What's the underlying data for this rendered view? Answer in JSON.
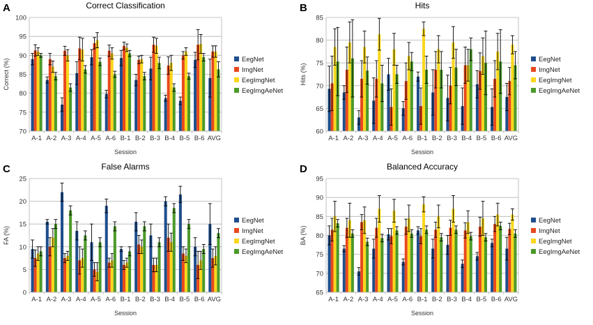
{
  "colors": {
    "EegNet": "#1f4e8c",
    "ImgNet": "#e8491d",
    "EegImgNet": "#f9d71c",
    "EegImgAeNet": "#4c9a2a"
  },
  "chart_data": [
    {
      "panel_letter": "A",
      "type": "bar",
      "title": "Correct Classification",
      "xlabel": "Session",
      "ylabel": "Correct (%)",
      "ylim": [
        70,
        100
      ],
      "yticks": [
        "70",
        "75",
        "80",
        "85",
        "90",
        "95",
        "100"
      ],
      "categories": [
        "A-1",
        "A-2",
        "A-3",
        "A-4",
        "A-5",
        "A-6",
        "B-1",
        "B-2",
        "B-3",
        "B-4",
        "B-5",
        "B-6",
        "AVG"
      ],
      "series": [
        {
          "name": "EegNet",
          "values": [
            89,
            83.5,
            77,
            85.3,
            89.5,
            79.8,
            89.3,
            83.5,
            86.5,
            78.7,
            78,
            88.8,
            84
          ],
          "errors": [
            1.5,
            0.8,
            1.8,
            3,
            2,
            1,
            2,
            1.5,
            3,
            0.8,
            1,
            2,
            5
          ]
        },
        {
          "name": "ImgNet",
          "values": [
            91.3,
            89,
            91.2,
            91.8,
            93.2,
            91.2,
            92.5,
            88.8,
            92.8,
            87.3,
            90,
            92.8,
            91
          ],
          "errors": [
            1.5,
            1.5,
            1.2,
            3,
            1.5,
            1.5,
            1,
            1,
            2,
            2.3,
            1,
            4,
            1.5
          ]
        },
        {
          "name": "EegImgNet",
          "values": [
            91,
            87,
            90,
            91.5,
            94,
            90.5,
            92,
            89,
            92.5,
            88,
            91,
            93,
            91
          ],
          "errors": [
            1,
            1.5,
            1.5,
            3,
            2,
            1.5,
            1,
            1,
            2,
            2,
            1,
            2.5,
            1.5
          ]
        },
        {
          "name": "EegImgAeNet",
          "values": [
            90,
            84.5,
            81.5,
            86.3,
            88.3,
            85,
            90.5,
            84.5,
            88,
            81.5,
            84.5,
            89.5,
            86.3
          ],
          "errors": [
            0.5,
            1,
            1,
            1,
            1,
            0.8,
            0.8,
            1,
            1.5,
            1,
            0.8,
            1,
            2
          ]
        }
      ]
    },
    {
      "panel_letter": "B",
      "type": "bar",
      "title": "Hits",
      "xlabel": "Session",
      "ylabel": "Hits (%)",
      "ylim": [
        60,
        85
      ],
      "yticks": [
        "60",
        "65",
        "70",
        "75",
        "80",
        "85"
      ],
      "categories": [
        "A-1",
        "A-2",
        "A-3",
        "A-4",
        "A-5",
        "A-6",
        "B-1",
        "B-2",
        "B-3",
        "B-4",
        "B-5",
        "B-6",
        "AVG"
      ],
      "series": [
        {
          "name": "EegNet",
          "values": [
            69.3,
            68.5,
            63,
            66.7,
            72.5,
            65,
            72,
            68.5,
            67.3,
            65.5,
            70.3,
            65.3,
            67.5
          ],
          "errors": [
            5,
            1.5,
            1.5,
            5,
            3.5,
            1.5,
            1,
            5,
            5,
            4,
            3,
            4,
            3
          ]
        },
        {
          "name": "ImgNet",
          "values": [
            70.5,
            73.5,
            71.5,
            71.5,
            65.3,
            71,
            65.5,
            73.5,
            70,
            74.5,
            73.2,
            71.5,
            71
          ],
          "errors": [
            6,
            5,
            4,
            4,
            4,
            4,
            4,
            4,
            4,
            4,
            4,
            4,
            3
          ]
        },
        {
          "name": "EegImgNet",
          "values": [
            78.5,
            79.5,
            78.5,
            81.3,
            78,
            76.5,
            82.5,
            78,
            79.5,
            74.5,
            76.5,
            77.5,
            79
          ],
          "errors": [
            4,
            4.5,
            3.5,
            3.5,
            3.5,
            3,
            1.5,
            3,
            3.5,
            3.5,
            4,
            4,
            2
          ]
        },
        {
          "name": "EegImgAeNet",
          "values": [
            75.3,
            76,
            73.3,
            70.5,
            72.5,
            75.3,
            73.5,
            73.5,
            74,
            78,
            75,
            75.3,
            74.5
          ],
          "errors": [
            7.5,
            8.5,
            3,
            4,
            2,
            2,
            3,
            4,
            4,
            2.5,
            7,
            7,
            3
          ]
        }
      ]
    },
    {
      "panel_letter": "C",
      "type": "bar",
      "title": "False Alarms",
      "xlabel": "Session",
      "ylabel": "FA (%)",
      "ylim": [
        0,
        25
      ],
      "yticks": [
        "0",
        "5",
        "10",
        "15",
        "20",
        "25"
      ],
      "categories": [
        "A-1",
        "A-2",
        "A-3",
        "A-4",
        "A-5",
        "A-6",
        "B-1",
        "B-2",
        "B-3",
        "B-4",
        "B-5",
        "B-6",
        "AVG"
      ],
      "series": [
        {
          "name": "EegNet",
          "values": [
            9.5,
            15.5,
            22,
            13.5,
            11,
            19,
            9.5,
            15.5,
            12.5,
            20,
            21.5,
            10,
            15
          ],
          "errors": [
            2,
            0.5,
            2,
            2,
            4,
            1.5,
            0.5,
            2,
            2.5,
            1,
            1.8,
            2,
            4.5
          ]
        },
        {
          "name": "ImgNet",
          "values": [
            7.5,
            10,
            7.5,
            7,
            5,
            6.5,
            6,
            10.5,
            6,
            12,
            8.5,
            6,
            7.5
          ],
          "errors": [
            1.8,
            2,
            1,
            3,
            1.5,
            1,
            1,
            2,
            1.5,
            3,
            1.5,
            3,
            2
          ]
        },
        {
          "name": "EegImgNet",
          "values": [
            8.5,
            12,
            8,
            7.5,
            4.5,
            7,
            6.5,
            10,
            6,
            11,
            8,
            7,
            8
          ],
          "errors": [
            1.5,
            2,
            1,
            2,
            2,
            1.5,
            1,
            1.5,
            1.5,
            2,
            1.5,
            2,
            2
          ]
        },
        {
          "name": "EegImgAeNet",
          "values": [
            9,
            15,
            18,
            12.5,
            11,
            14.5,
            9,
            14.5,
            11,
            18.5,
            15,
            9.5,
            13
          ],
          "errors": [
            1,
            1,
            1,
            1,
            1,
            1,
            1,
            1,
            1,
            1,
            1,
            1,
            1
          ]
        }
      ]
    },
    {
      "panel_letter": "D",
      "type": "bar",
      "title": "Balanced Accuracy",
      "xlabel": "Session",
      "ylabel": "BA (%)",
      "ylim": [
        65,
        95
      ],
      "yticks": [
        "65",
        "70",
        "75",
        "80",
        "85",
        "90",
        "95"
      ],
      "categories": [
        "A-1",
        "A-2",
        "A-3",
        "A-4",
        "A-5",
        "A-6",
        "B-1",
        "B-2",
        "B-3",
        "B-4",
        "B-5",
        "B-6",
        "AVG"
      ],
      "series": [
        {
          "name": "EegNet",
          "values": [
            80,
            76.5,
            70.5,
            76.5,
            80.3,
            73,
            81.3,
            76.5,
            77.5,
            72.5,
            74.5,
            78,
            76.5
          ],
          "errors": [
            2.5,
            0.8,
            1,
            2.5,
            1.5,
            0.8,
            1,
            2.5,
            2.5,
            1,
            1,
            1,
            3
          ]
        },
        {
          "name": "ImgNet",
          "values": [
            81.5,
            82,
            83.5,
            82,
            79.8,
            82.3,
            79.8,
            81.5,
            82,
            81.3,
            82.3,
            83,
            81.7
          ],
          "errors": [
            3,
            2.5,
            2,
            2.5,
            2,
            2,
            2,
            2,
            2,
            2,
            2.5,
            2,
            1.5
          ]
        },
        {
          "name": "EegImgNet",
          "values": [
            85,
            84,
            84,
            87,
            86.5,
            84.5,
            88.2,
            85,
            87,
            83.5,
            84.5,
            85.5,
            85.5
          ],
          "errors": [
            4,
            4.5,
            3.5,
            3.5,
            3,
            3.5,
            2,
            3,
            3.5,
            3,
            4.5,
            3,
            1.5
          ]
        },
        {
          "name": "EegImgAeNet",
          "values": [
            83.2,
            80.5,
            78.3,
            79.3,
            81.3,
            80.5,
            81.5,
            79.5,
            81.5,
            79.8,
            79.5,
            82.5,
            80.5
          ],
          "errors": [
            1,
            1,
            1,
            1,
            1,
            1,
            1,
            1,
            1,
            1,
            1,
            1,
            1
          ]
        }
      ]
    }
  ]
}
